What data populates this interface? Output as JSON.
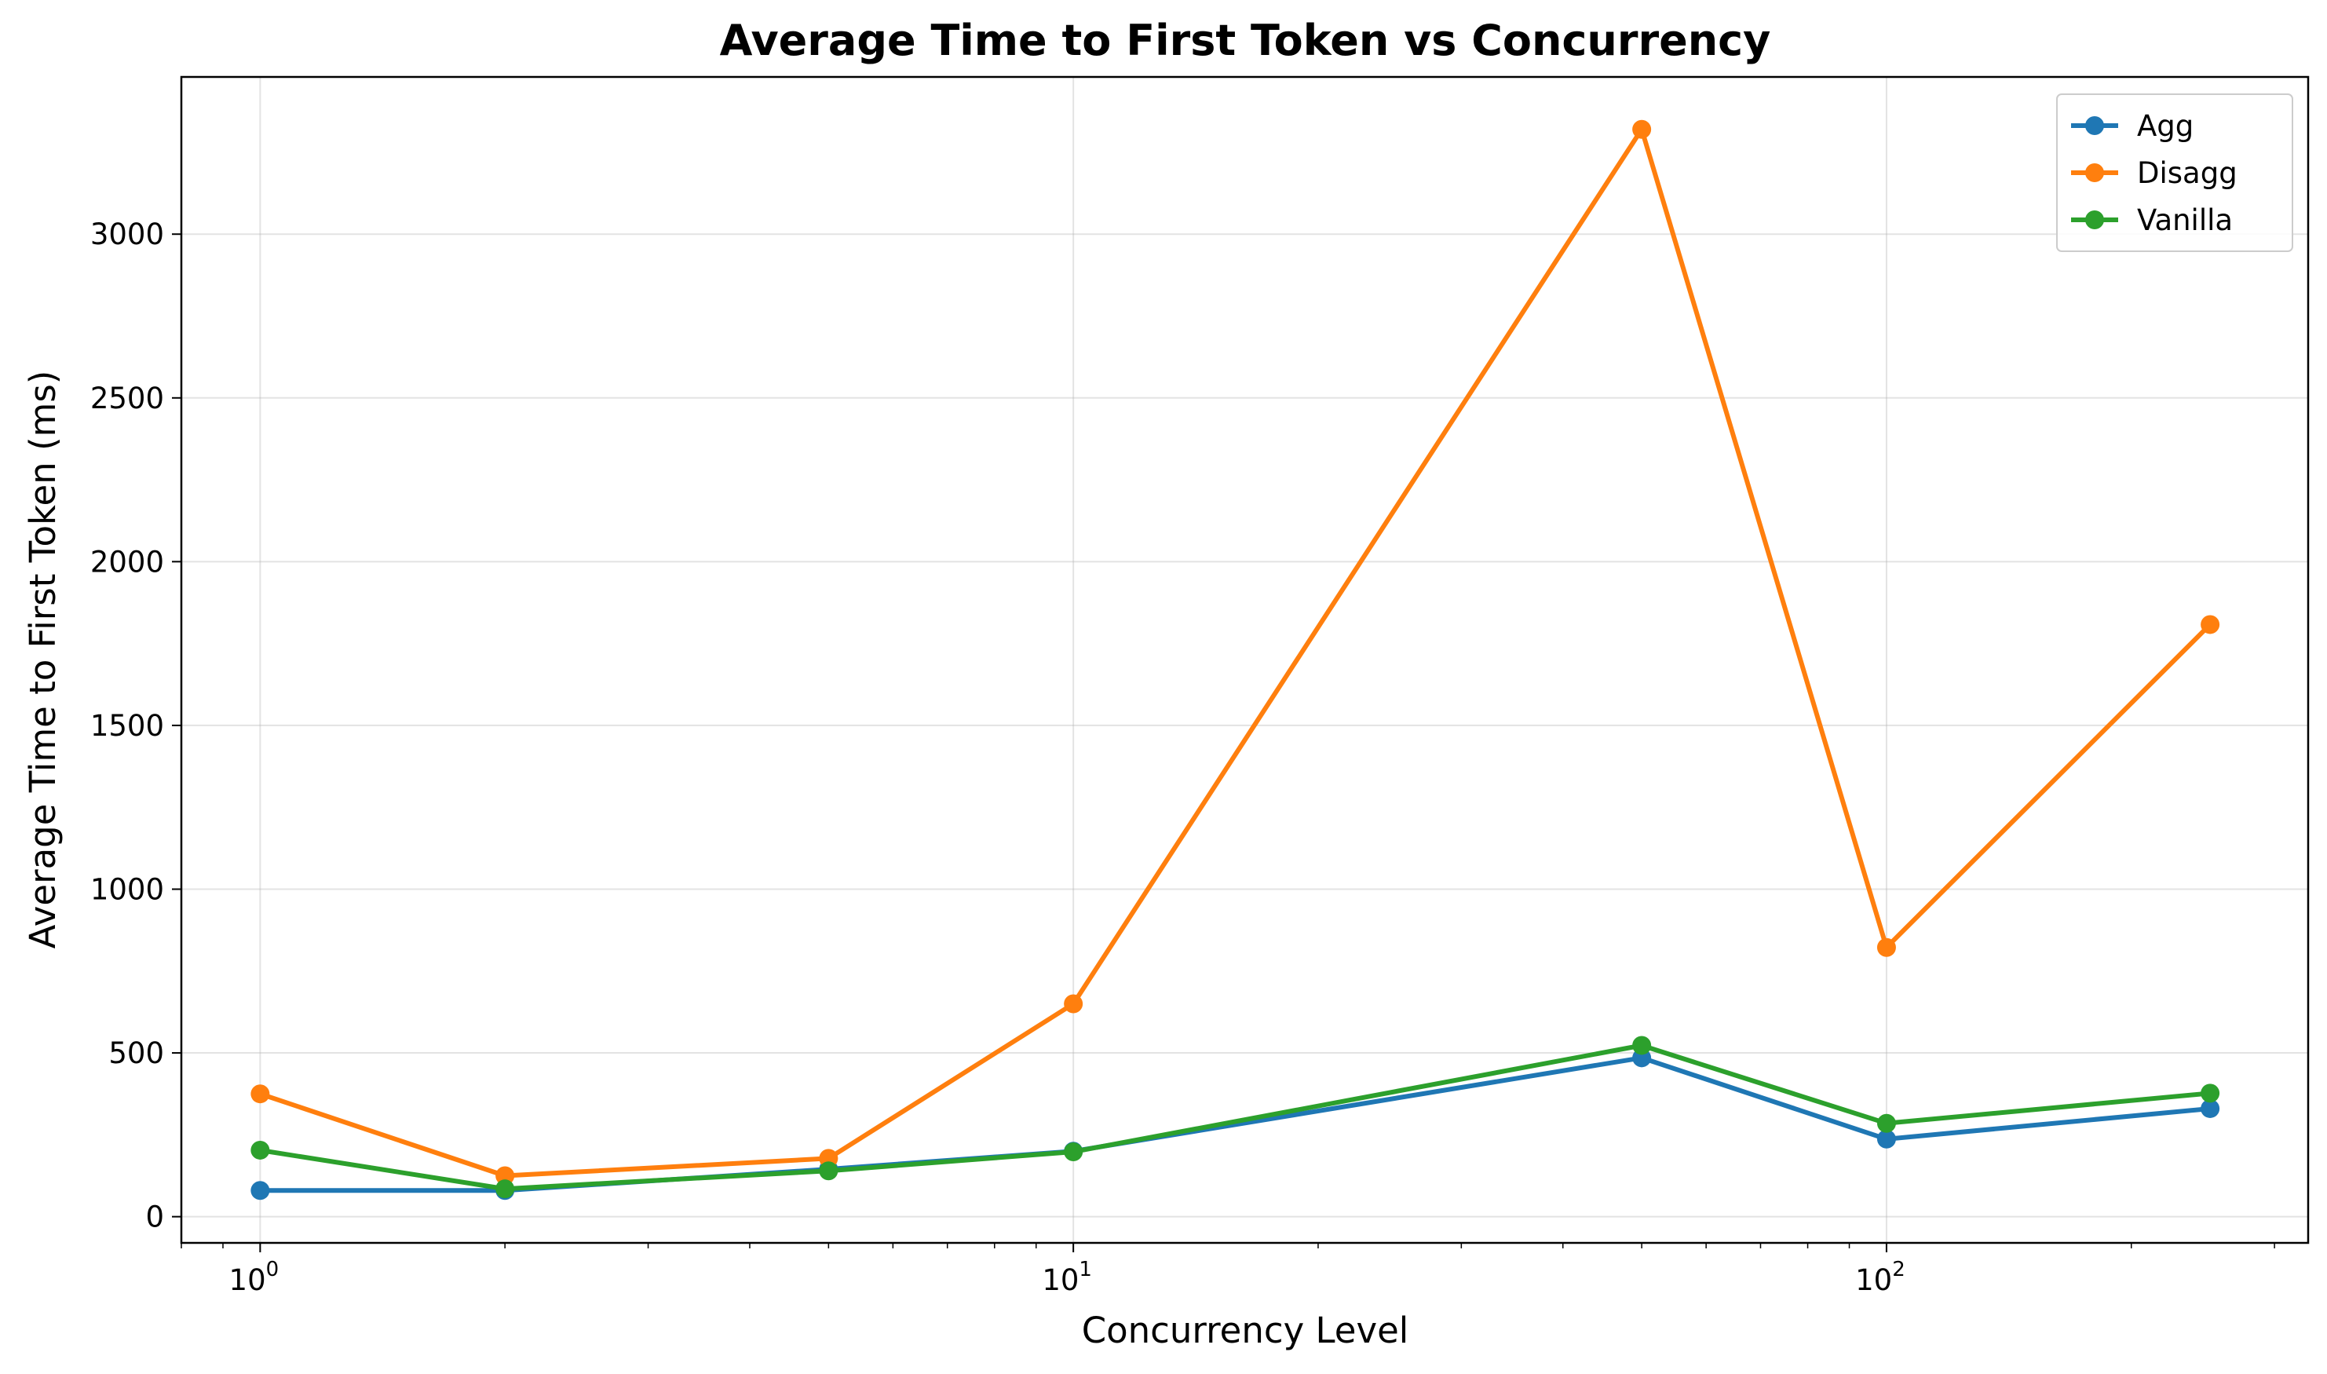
{
  "chart_data": {
    "type": "line",
    "title": "Average Time to First Token vs Concurrency",
    "xlabel": "Concurrency Level",
    "ylabel": "Average Time to First Token (ms)",
    "xscale": "log",
    "xlim": [
      0.8,
      330
    ],
    "ylim": [
      -80,
      3480
    ],
    "x": [
      1,
      2,
      5,
      10,
      50,
      100,
      250
    ],
    "xticks": [
      {
        "base": "10",
        "exp": "0",
        "value": 1
      },
      {
        "base": "10",
        "exp": "1",
        "value": 10
      },
      {
        "base": "10",
        "exp": "2",
        "value": 100
      }
    ],
    "yticks": [
      "0",
      "500",
      "1000",
      "1500",
      "2000",
      "2500",
      "3000"
    ],
    "grid": true,
    "legend_position": "top-right",
    "series": [
      {
        "name": "Agg",
        "color": "#1f77b4",
        "values": [
          80,
          80,
          145,
          200,
          485,
          237,
          330
        ]
      },
      {
        "name": "Disagg",
        "color": "#ff7f0e",
        "values": [
          375,
          125,
          178,
          650,
          3320,
          822,
          1808
        ]
      },
      {
        "name": "Vanilla",
        "color": "#2ca02c",
        "values": [
          203,
          85,
          140,
          198,
          523,
          285,
          377
        ]
      }
    ]
  }
}
